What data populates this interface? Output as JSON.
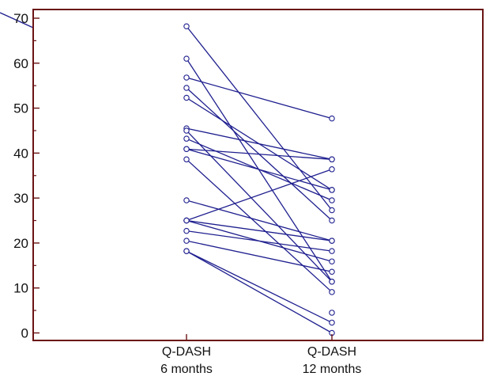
{
  "chart_data": {
    "type": "line",
    "subtype": "paired-slope",
    "categories": [
      "Q-DASH\n6 months",
      "Q-DASH\n12 months"
    ],
    "ylim": [
      -2,
      72
    ],
    "yticks": [
      0,
      10,
      20,
      30,
      40,
      50,
      60,
      70
    ],
    "grid": false,
    "legend": "none",
    "pairs": [
      [
        68.2,
        27.3
      ],
      [
        61.0,
        11.4
      ],
      [
        56.8,
        47.7
      ],
      [
        54.5,
        25.0
      ],
      [
        52.3,
        31.8
      ],
      [
        45.5,
        38.6
      ],
      [
        45.0,
        11.4
      ],
      [
        43.2,
        29.5
      ],
      [
        40.9,
        38.6
      ],
      [
        40.9,
        31.8
      ],
      [
        38.6,
        9.1
      ],
      [
        29.5,
        20.5
      ],
      [
        25.0,
        20.5
      ],
      [
        25.0,
        15.9
      ],
      [
        25.0,
        36.4
      ],
      [
        22.7,
        18.2
      ],
      [
        20.5,
        13.6
      ],
      [
        18.2,
        2.3
      ],
      [
        18.2,
        0.0
      ],
      [
        null,
        4.5
      ]
    ],
    "colors": {
      "line": "#1f1f8f",
      "marker": "#1f1f8f",
      "axis": "#6b1414",
      "text": "#111111"
    }
  }
}
